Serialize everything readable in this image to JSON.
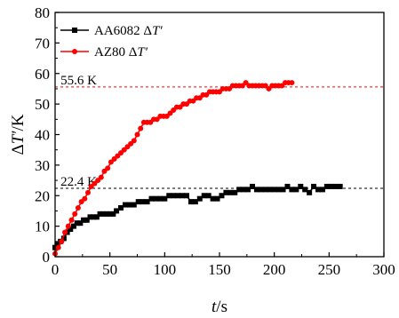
{
  "chart_data": {
    "type": "line",
    "xlabel": {
      "var": "t",
      "unit": "/s"
    },
    "ylabel": {
      "var": "ΔT′",
      "unit": "/K"
    },
    "xlim": [
      0,
      300
    ],
    "ylim": [
      0,
      80
    ],
    "xticks": [
      0,
      50,
      100,
      150,
      200,
      250,
      300
    ],
    "yticks": [
      0,
      10,
      20,
      30,
      40,
      50,
      60,
      70,
      80
    ],
    "grid": false,
    "legend": "top-left",
    "series": [
      {
        "name": "AA6082 ΔT′",
        "label_prefix": "AA6082 Δ",
        "label_var": "T′",
        "color": "#000000",
        "marker": "square",
        "x": [
          0,
          2,
          5,
          8,
          11,
          14,
          17,
          20,
          23,
          26,
          29,
          32,
          35,
          38,
          41,
          44,
          47,
          50,
          53,
          56,
          60,
          64,
          68,
          72,
          76,
          80,
          84,
          88,
          92,
          96,
          100,
          104,
          108,
          112,
          116,
          120,
          124,
          128,
          132,
          136,
          140,
          144,
          148,
          152,
          156,
          160,
          164,
          168,
          172,
          176,
          180,
          184,
          188,
          192,
          196,
          200,
          204,
          208,
          212,
          216,
          220,
          224,
          228,
          232,
          236,
          240,
          244,
          248,
          252,
          256,
          260
        ],
        "y": [
          3,
          4,
          5,
          6,
          8,
          9,
          10,
          11,
          11,
          12,
          12,
          13,
          13,
          13,
          14,
          14,
          14,
          14,
          14,
          15,
          16,
          17,
          17,
          17,
          18,
          18,
          18,
          19,
          19,
          19,
          19,
          20,
          20,
          20,
          20,
          20,
          18,
          18,
          19,
          20,
          20,
          19,
          19,
          20,
          21,
          21,
          21,
          22,
          22,
          22,
          23,
          22,
          22,
          22,
          22,
          22,
          22,
          22,
          23,
          22,
          22,
          23,
          22,
          21,
          23,
          22,
          22,
          23,
          23,
          23,
          23
        ]
      },
      {
        "name": "AZ80 ΔT′",
        "label_prefix": "AZ80 Δ",
        "label_var": "T′",
        "color": "#ff0000",
        "marker": "circle",
        "x": [
          0,
          3,
          6,
          9,
          12,
          15,
          18,
          21,
          24,
          27,
          30,
          33,
          36,
          39,
          42,
          45,
          48,
          51,
          54,
          57,
          60,
          63,
          66,
          69,
          72,
          75,
          78,
          81,
          84,
          87,
          90,
          93,
          96,
          99,
          102,
          105,
          108,
          111,
          114,
          117,
          120,
          123,
          126,
          129,
          132,
          135,
          138,
          141,
          144,
          147,
          150,
          153,
          156,
          159,
          162,
          165,
          168,
          171,
          174,
          177,
          180,
          183,
          186,
          189,
          192,
          195,
          198,
          201,
          204,
          207,
          210,
          213,
          216
        ],
        "y": [
          1,
          3,
          5,
          8,
          10,
          12,
          14,
          16,
          18,
          19,
          21,
          23,
          24,
          25,
          26,
          28,
          29,
          31,
          32,
          33,
          34,
          35,
          36,
          37,
          38,
          40,
          42,
          44,
          44,
          44,
          45,
          45,
          46,
          46,
          46,
          47,
          48,
          49,
          49,
          50,
          50,
          51,
          51,
          52,
          52,
          53,
          53,
          54,
          54,
          54,
          54,
          55,
          55,
          55,
          56,
          56,
          56,
          56,
          57,
          56,
          56,
          56,
          56,
          56,
          56,
          55,
          56,
          56,
          56,
          56,
          57,
          57,
          57
        ]
      }
    ],
    "reference_lines": [
      {
        "y": 55.6,
        "label": "55.6 K",
        "color": "#ff0000",
        "dash": "dashed",
        "label_x": 5
      },
      {
        "y": 22.4,
        "label": "22.4 K",
        "color": "#000000",
        "dash": "dashed",
        "label_x": 5
      }
    ]
  }
}
